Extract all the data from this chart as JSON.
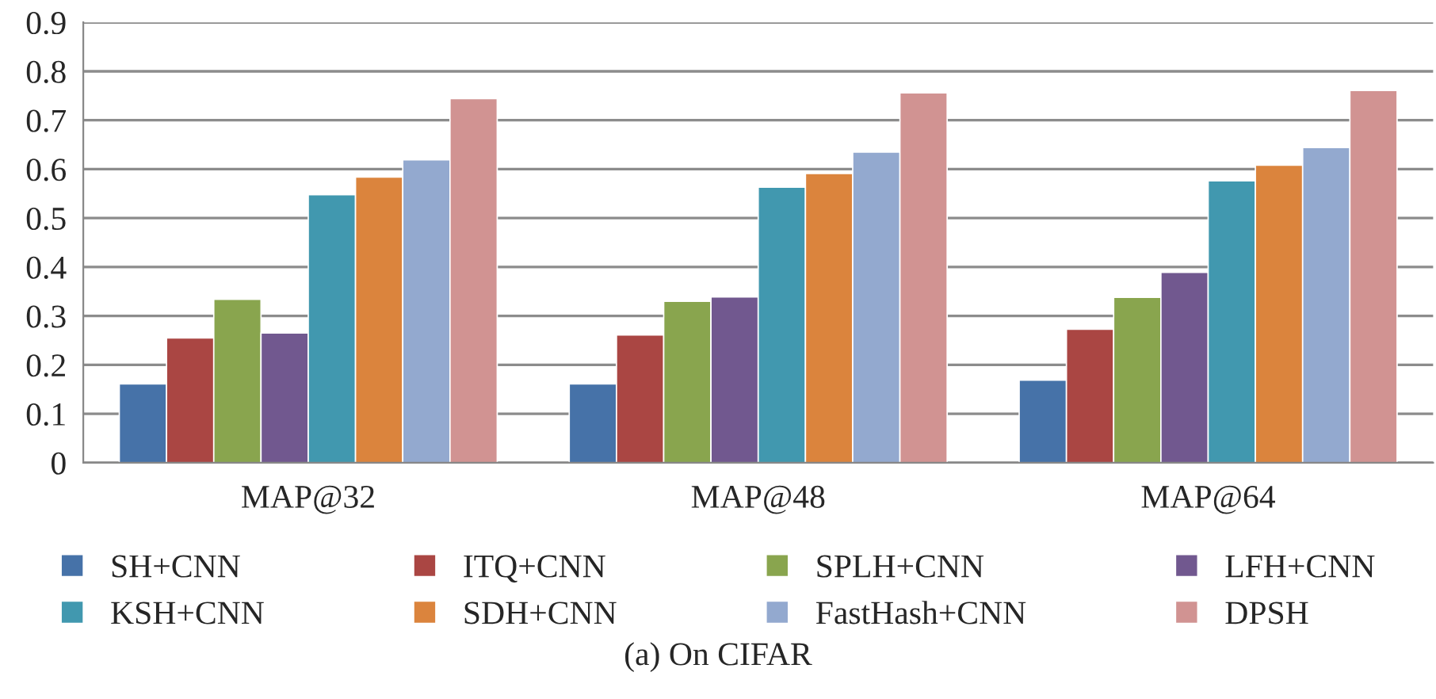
{
  "chart_data": {
    "type": "bar",
    "categories": [
      "MAP@32",
      "MAP@48",
      "MAP@64"
    ],
    "series": [
      {
        "name": "SH+CNN",
        "color": "#4672a8",
        "values": [
          0.161,
          0.161,
          0.169
        ]
      },
      {
        "name": "ITQ+CNN",
        "color": "#aa4643",
        "values": [
          0.255,
          0.261,
          0.273
        ]
      },
      {
        "name": "SPLH+CNN",
        "color": "#89a54e",
        "values": [
          0.334,
          0.33,
          0.338
        ]
      },
      {
        "name": "LFH+CNN",
        "color": "#71588f",
        "values": [
          0.265,
          0.339,
          0.389
        ]
      },
      {
        "name": "KSH+CNN",
        "color": "#4198af",
        "values": [
          0.548,
          0.563,
          0.576
        ]
      },
      {
        "name": "SDH+CNN",
        "color": "#db843d",
        "values": [
          0.584,
          0.591,
          0.608
        ]
      },
      {
        "name": "FastHash+CNN",
        "color": "#93a9cf",
        "values": [
          0.619,
          0.635,
          0.644
        ]
      },
      {
        "name": "DPSH",
        "color": "#d19392",
        "values": [
          0.744,
          0.756,
          0.761
        ]
      }
    ],
    "ylim": [
      0,
      0.9
    ],
    "yticks": [
      0,
      0.1,
      0.2,
      0.3,
      0.4,
      0.5,
      0.6,
      0.7,
      0.8,
      0.9
    ],
    "grid": "y",
    "legend": "bottom",
    "annotations": [
      "(a) On CIFAR"
    ]
  }
}
